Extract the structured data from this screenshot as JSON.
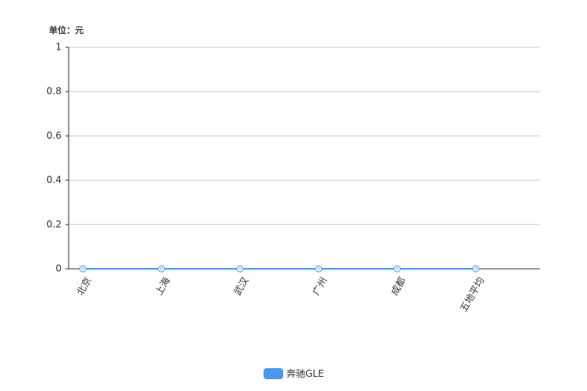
{
  "chart_data": {
    "type": "line",
    "unit_label": "单位：元",
    "categories": [
      "北京",
      "上海",
      "武汉",
      "广州",
      "成都",
      "五地平均"
    ],
    "series": [
      {
        "name": "奔驰GLE",
        "color": "#4e97e8",
        "values": [
          0,
          0,
          0,
          0,
          0,
          0
        ]
      }
    ],
    "ylim": [
      0,
      1
    ],
    "yticks": [
      0,
      0.2,
      0.4,
      0.6,
      0.8,
      1
    ],
    "grid": true,
    "legend": "bottom"
  }
}
